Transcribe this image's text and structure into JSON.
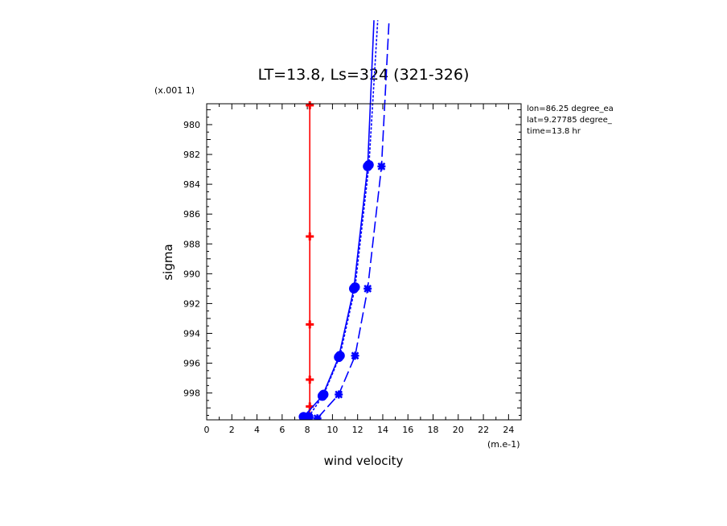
{
  "chart_data": {
    "type": "line",
    "title": "LT=13.8, Ls=324 (321-326)",
    "xlabel": "wind velocity",
    "ylabel": "sigma",
    "x_unit": "(m.e-1)",
    "y_unit": "(x.001 1)",
    "xlim": [
      0,
      25
    ],
    "ylim": [
      999.8,
      978.6
    ],
    "y_reversed": true,
    "x_ticks": [
      "0",
      "2",
      "4",
      "6",
      "8",
      "10",
      "12",
      "14",
      "16",
      "18",
      "20",
      "22",
      "24"
    ],
    "y_ticks": [
      "980",
      "982",
      "984",
      "986",
      "988",
      "990",
      "992",
      "994",
      "996",
      "998"
    ],
    "info": [
      "lon=86.25 degree_ea",
      "lat=9.27785 degree_",
      "time=13.8 hr"
    ],
    "grid": false,
    "series": [
      {
        "color": "#ff0000",
        "style": "solid",
        "marker": "plus",
        "points": [
          [
            8.2,
            999.9
          ],
          [
            8.2,
            998.9
          ],
          [
            8.2,
            997.1
          ],
          [
            8.2,
            993.4
          ],
          [
            8.2,
            987.5
          ],
          [
            8.2,
            978.7
          ]
        ]
      },
      {
        "color": "#0000ff",
        "style": "solid",
        "marker": "dot",
        "points": [
          [
            7.7,
            999.6
          ],
          [
            9.2,
            998.2
          ],
          [
            10.5,
            995.6
          ],
          [
            11.7,
            991.0
          ],
          [
            12.8,
            982.8
          ],
          [
            13.3,
            973.0
          ]
        ]
      },
      {
        "color": "#0000ff",
        "style": "dotted",
        "marker": "dot",
        "points": [
          [
            8.1,
            999.6
          ],
          [
            9.3,
            998.1
          ],
          [
            10.6,
            995.5
          ],
          [
            11.8,
            990.9
          ],
          [
            12.9,
            982.7
          ],
          [
            13.6,
            973.0
          ]
        ]
      },
      {
        "color": "#0000ff",
        "style": "dashed",
        "marker": "cross",
        "points": [
          [
            8.8,
            999.7
          ],
          [
            10.5,
            998.1
          ],
          [
            11.8,
            995.5
          ],
          [
            12.8,
            991.0
          ],
          [
            13.9,
            982.8
          ],
          [
            14.5,
            973.0
          ]
        ]
      }
    ]
  }
}
